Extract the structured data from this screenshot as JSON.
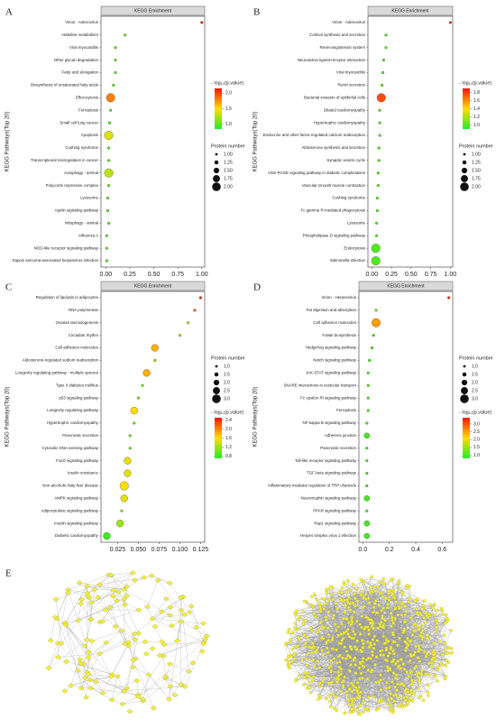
{
  "chart_data": [
    {
      "type": "scatter",
      "panel": "A",
      "title": "KEGG Enrichment",
      "ylabel": "KEGG Pathways(Top 20)",
      "categories": [
        "Virion - Adenovirus",
        "Histidine metabolism",
        "Viral myocarditis",
        "Other glycan degradation",
        "Fatty acid elongation",
        "Biosynthesis of unsaturated fatty acids",
        "Efferocytosis",
        "Ferroptosis",
        "Small cell lung cancer",
        "Apoptosis",
        "Cushing syndrome",
        "Transcriptional misregulation in cancer",
        "Autophagy - animal",
        "Polycomb repressive complex",
        "Lysosome",
        "Apelin signaling pathway",
        "Mitophagy - animal",
        "Influenza A",
        "NOD-like receptor signaling pathway",
        "Kaposi sarcoma-associated herpesvirus infection"
      ],
      "x": [
        1.0,
        0.2,
        0.1,
        0.1,
        0.1,
        0.08,
        0.05,
        0.05,
        0.04,
        0.03,
        0.03,
        0.03,
        0.03,
        0.03,
        0.02,
        0.02,
        0.03,
        0.01,
        0.01,
        0.01
      ],
      "sizes": [
        1,
        1,
        1,
        1,
        1,
        1,
        2,
        1,
        1,
        2,
        1,
        1,
        2,
        1,
        1,
        1,
        1,
        1,
        1,
        1
      ],
      "color_values": [
        2.1,
        1.1,
        1.0,
        1.0,
        1.0,
        1.0,
        1.8,
        1.0,
        1.0,
        1.4,
        1.0,
        1.0,
        1.3,
        1.0,
        1.0,
        1.0,
        1.0,
        1.0,
        1.0,
        1.0
      ],
      "xlim": [
        -0.05,
        1.03
      ],
      "xticks": [
        {
          "value": 0,
          "label": "0.00"
        },
        0.25,
        {
          "value": 0.5,
          "label": "0.50"
        },
        0.75,
        {
          "value": 1,
          "label": "1.00"
        }
      ],
      "color_title": "- log₁₀(p.value)",
      "color_lim": [
        0.85,
        2.15
      ],
      "color_ticks": [
        {
          "value": 1,
          "label": "1.0"
        },
        1.5,
        {
          "value": 2,
          "label": "2.0"
        }
      ],
      "color_scale": [
        "#22ee22",
        "#ffdd00",
        "#ff1100"
      ],
      "size_title": "Protein number",
      "size_ticks": [
        {
          "value": 1,
          "label": "1.00"
        },
        1.25,
        {
          "value": 1.5,
          "label": "1.50"
        },
        1.75,
        {
          "value": 2,
          "label": "2.00"
        }
      ],
      "legend_order": [
        "color",
        "size"
      ]
    },
    {
      "type": "scatter",
      "panel": "B",
      "title": "KEGG Enrichment",
      "ylabel": "KEGG Pathways(Top 20)",
      "categories": [
        "Virion - Adenovirus",
        "Cortisol synthesis and secretion",
        "Renin-angiotensin system",
        "Neuroactive ligand-receptor interaction",
        "Viral myocarditis",
        "Renin secretion",
        "Bacterial invasion of epithelial cells",
        "Dilated cardiomyopathy",
        "Hypertrophic cardiomyopathy",
        "Endocrine and other factor-regulated calcium reabsorption",
        "Aldosterone synthesis and secretion",
        "Synaptic vesicle cycle",
        "AGE-RAGE signaling pathway in diabetic complications",
        "Vascular smooth muscle contraction",
        "Cushing syndrome",
        "Fc gamma R-mediated phagocytosis",
        "Lysosome",
        "Phospholipase D signaling pathway",
        "Endocytosis",
        "Salmonella infection"
      ],
      "x": [
        1.0,
        0.18,
        0.18,
        0.15,
        0.14,
        0.13,
        0.12,
        0.1,
        0.1,
        0.1,
        0.09,
        0.09,
        0.08,
        0.08,
        0.07,
        0.07,
        0.06,
        0.06,
        0.05,
        0.05
      ],
      "sizes": [
        1,
        1,
        1,
        1,
        1,
        1,
        2,
        1,
        1,
        1,
        1,
        1,
        1,
        1,
        1,
        1,
        1,
        1,
        2,
        2
      ],
      "color_values": [
        1.8,
        1.0,
        1.0,
        1.0,
        1.0,
        1.0,
        1.75,
        1.0,
        1.0,
        1.0,
        1.0,
        1.0,
        1.0,
        1.0,
        1.0,
        1.0,
        1.0,
        1.0,
        1.0,
        1.0
      ],
      "xlim": [
        -0.05,
        1.03
      ],
      "xticks": [
        {
          "value": 0,
          "label": "0.00"
        },
        0.25,
        {
          "value": 0.5,
          "label": "0.50"
        },
        0.75,
        {
          "value": 1,
          "label": "1.00"
        }
      ],
      "color_title": "- log₁₀(p.value)",
      "color_lim": [
        0.9,
        1.9
      ],
      "color_ticks": [
        {
          "value": 1,
          "label": "1.0"
        },
        1.2,
        1.4,
        1.6,
        1.8
      ],
      "color_scale": [
        "#22ee22",
        "#ffdd00",
        "#ff1100"
      ],
      "size_title": "Protein number",
      "size_ticks": [
        {
          "value": 1,
          "label": "1.00"
        },
        1.25,
        {
          "value": 1.5,
          "label": "1.50"
        },
        1.75,
        {
          "value": 2,
          "label": "2.00"
        }
      ],
      "legend_order": [
        "color",
        "size"
      ]
    },
    {
      "type": "scatter",
      "panel": "C",
      "title": "KEGG Enrichment",
      "ylabel": "KEGG Pathways(Top 20)",
      "categories": [
        "Regulation of lipolysis in adipocytes",
        "RNA polymerase",
        "Ovarian steroidogenesis",
        "Circadian rhythm",
        "Cell adhesion molecules",
        "Aldosterone-regulated sodium reabsorption",
        "Longevity regulating pathway - multiple species",
        "Type II diabetes mellitus",
        "p53 signaling pathway",
        "Longevity regulating pathway",
        "Hypertrophic cardiomyopathy",
        "Pancreatic secretion",
        "Cytosolic DNA-sensing pathway",
        "FoxO signaling pathway",
        "Insulin resistance",
        "Non-alcoholic fatty liver disease",
        "AMPK signaling pathway",
        "Adipocytokine signaling pathway",
        "Insulin signaling pathway",
        "Diabetic cardiomyopathy"
      ],
      "x": [
        0.125,
        0.118,
        0.11,
        0.1,
        0.07,
        0.07,
        0.06,
        0.055,
        0.05,
        0.045,
        0.045,
        0.04,
        0.04,
        0.037,
        0.037,
        0.033,
        0.033,
        0.03,
        0.028,
        0.012
      ],
      "sizes": [
        1,
        1,
        1,
        1,
        2.5,
        1,
        2.5,
        1,
        1,
        2.5,
        1,
        1,
        1,
        2.5,
        2.5,
        3,
        2.5,
        1,
        2.5,
        2.5
      ],
      "color_values": [
        2.4,
        2.2,
        1.3,
        1.2,
        1.8,
        1.1,
        1.8,
        1.0,
        1.0,
        1.6,
        1.0,
        1.0,
        1.0,
        1.5,
        1.5,
        1.6,
        1.5,
        1.1,
        1.2,
        0.8
      ],
      "xlim": [
        0.005,
        0.13
      ],
      "xticks": [
        0.025,
        {
          "value": 0.05,
          "label": "0.050"
        },
        0.075,
        {
          "value": 0.1,
          "label": "0.100"
        },
        0.125
      ],
      "color_title": "- log₁₀(p.value)",
      "color_lim": [
        0.7,
        2.5
      ],
      "color_ticks": [
        0.8,
        1.2,
        1.6,
        {
          "value": 2,
          "label": "2.0"
        },
        2.4
      ],
      "color_scale": [
        "#22ee22",
        "#ffdd00",
        "#ff1100"
      ],
      "size_title": "Protein number",
      "size_ticks": [
        {
          "value": 1,
          "label": "1.0"
        },
        1.5,
        {
          "value": 2,
          "label": "2.0"
        },
        2.5,
        {
          "value": 3,
          "label": "3.0"
        }
      ],
      "legend_order": [
        "size",
        "color"
      ]
    },
    {
      "type": "scatter",
      "panel": "D",
      "title": "KEGG Enrichment",
      "ylabel": "KEGG Pathways(Top 20)",
      "categories": [
        "Virion - Herpesvirus",
        "Fat digestion and absorption",
        "Cell adhesion molecules",
        "Folate biosynthesis",
        "Hedgehog signaling pathway",
        "Notch signaling pathway",
        "JAK-STAT signaling pathway",
        "SNARE interactions in vesicular transport",
        "Fc epsilon RI signaling pathway",
        "Ferroptosis",
        "NF-kappa B signaling pathway",
        "Adherens junction",
        "Pancreatic secretion",
        "Toll-like receptor signaling pathway",
        "TGF-beta signaling pathway",
        "Inflammatory mediator regulation of TRP channels",
        "Neurotrophin signaling pathway",
        "PPAR signaling pathway",
        "Rap1 signaling pathway",
        "Herpes simplex virus 1 infection"
      ],
      "x": [
        0.65,
        0.1,
        0.1,
        0.08,
        0.07,
        0.05,
        0.04,
        0.04,
        0.04,
        0.04,
        0.03,
        0.03,
        0.03,
        0.03,
        0.03,
        0.03,
        0.03,
        0.03,
        0.03,
        0.03
      ],
      "sizes": [
        1,
        1,
        3,
        1,
        1,
        1,
        1,
        1,
        1,
        1,
        1,
        2,
        1,
        1,
        1,
        1,
        2,
        1,
        2,
        2
      ],
      "color_values": [
        3.3,
        1.2,
        2.5,
        1.0,
        1.0,
        1.0,
        1.0,
        1.0,
        1.0,
        1.0,
        1.0,
        1.0,
        1.0,
        1.0,
        1.0,
        1.0,
        1.0,
        1.0,
        1.0,
        1.0
      ],
      "xlim": [
        -0.03,
        0.68
      ],
      "xticks": [
        {
          "value": 0,
          "label": "0.0"
        },
        0.2,
        0.4,
        0.6
      ],
      "color_title": "- log₁₀(p.value)",
      "color_lim": [
        0.8,
        3.4
      ],
      "color_ticks": [
        {
          "value": 1,
          "label": "1.0"
        },
        1.5,
        {
          "value": 2,
          "label": "2.0"
        },
        2.5,
        {
          "value": 3,
          "label": "3.0"
        }
      ],
      "color_scale": [
        "#22ee22",
        "#ffdd00",
        "#ff1100"
      ],
      "size_title": "Protein number",
      "size_ticks": [
        {
          "value": 1,
          "label": "1.0"
        },
        1.5,
        {
          "value": 2,
          "label": "2.0"
        },
        2.5,
        {
          "value": 3,
          "label": "3.0"
        }
      ],
      "legend_order": [
        "size",
        "color"
      ]
    }
  ],
  "panel_e": {
    "label": "E"
  }
}
